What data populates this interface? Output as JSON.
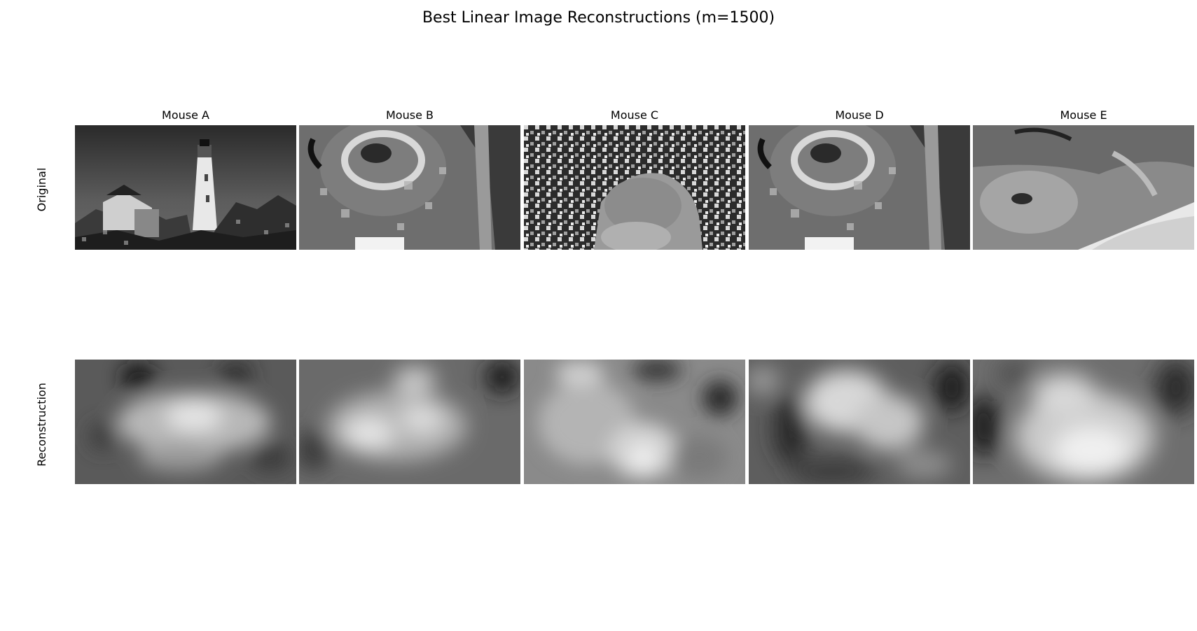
{
  "chart_data": {
    "type": "image-grid",
    "title": "Best Linear Image Reconstructions (m=1500)",
    "columns": [
      "Mouse A",
      "Mouse B",
      "Mouse C",
      "Mouse D",
      "Mouse E"
    ],
    "rows": [
      "Original",
      "Reconstruction"
    ],
    "colormap": "grayscale",
    "axes_visible": false
  }
}
